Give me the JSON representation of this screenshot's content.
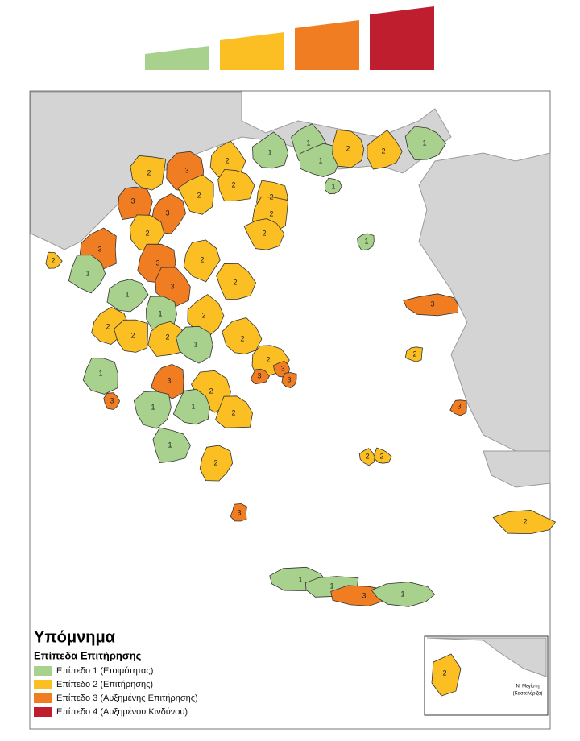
{
  "legend": {
    "title": "Υπόμνημα",
    "subtitle": "Επίπεδα Επιτήρησης"
  },
  "levels": [
    {
      "label": "Επίπεδο 1 (Ετοιμότητας)",
      "color": "#a9d18e"
    },
    {
      "label": "Επίπεδο 2 (Επιτήρησης)",
      "color": "#fbbf24"
    },
    {
      "label": "Επίπεδο 3 (Αυξημένης Επιτήρησης)",
      "color": "#f07d22"
    },
    {
      "label": "Επίπεδο 4 (Αυξημένου Κινδύνου)",
      "color": "#be1e2d"
    }
  ],
  "regions": [
    {
      "label": "1"
    },
    {
      "label": "1"
    },
    {
      "label": "1"
    },
    {
      "label": "2"
    },
    {
      "label": "2"
    },
    {
      "label": "1"
    },
    {
      "label": "1"
    },
    {
      "label": "2"
    },
    {
      "label": "3"
    },
    {
      "label": "2"
    },
    {
      "label": "2"
    },
    {
      "label": "3"
    },
    {
      "label": "3"
    },
    {
      "label": "2"
    },
    {
      "label": "2"
    },
    {
      "label": "2"
    },
    {
      "label": "2"
    },
    {
      "label": "2"
    },
    {
      "label": "3"
    },
    {
      "label": "3"
    },
    {
      "label": "2"
    },
    {
      "label": "3"
    },
    {
      "label": "2"
    },
    {
      "label": "1"
    },
    {
      "label": "1"
    },
    {
      "label": "1"
    },
    {
      "label": "2"
    },
    {
      "label": "2"
    },
    {
      "label": "2"
    },
    {
      "label": "2"
    },
    {
      "label": "2"
    },
    {
      "label": "1"
    },
    {
      "label": "2"
    },
    {
      "label": "2"
    },
    {
      "label": "1"
    },
    {
      "label": "3"
    },
    {
      "label": "3"
    },
    {
      "label": "2"
    },
    {
      "label": "2"
    },
    {
      "label": "3"
    },
    {
      "label": "3"
    },
    {
      "label": "3"
    },
    {
      "label": "1"
    },
    {
      "label": "1"
    },
    {
      "label": "1"
    },
    {
      "label": "2"
    },
    {
      "label": "3"
    },
    {
      "label": "1"
    },
    {
      "label": "3"
    },
    {
      "label": "2"
    },
    {
      "label": "3"
    },
    {
      "label": "2"
    },
    {
      "label": "2"
    },
    {
      "label": "2"
    },
    {
      "label": "1"
    },
    {
      "label": "1"
    },
    {
      "label": "3"
    },
    {
      "label": "1"
    }
  ],
  "inset": {
    "region": {
      "label": "2"
    },
    "caption": [
      "Ν. Μεγίστη",
      "(Καστελόριζο)"
    ]
  }
}
